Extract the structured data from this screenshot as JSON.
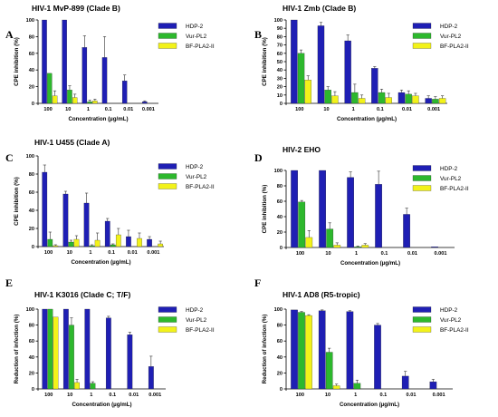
{
  "colors": {
    "HDP-2": "#1f1fb4",
    "Vur-PL2": "#2db82d",
    "BF-PLA2-II": "#f2f21a"
  },
  "chart_data": [
    {
      "panel": "A",
      "type": "bar",
      "title": "HIV-1 MvP-899 (Clade B)",
      "ylabel": "CPE inhibition (%)",
      "xlabel": "Concentration (µg/mL)",
      "ylim": [
        0,
        100
      ],
      "yticks": [
        0,
        20,
        40,
        60,
        80,
        100
      ],
      "categories": [
        "100",
        "10",
        "1",
        "0.1",
        "0.01",
        "0.001"
      ],
      "series": [
        {
          "name": "HDP-2",
          "values": [
            100,
            100,
            67,
            55,
            27,
            2
          ],
          "errors": [
            0,
            0,
            14,
            25,
            7,
            1
          ]
        },
        {
          "name": "Vur-PL2",
          "values": [
            36,
            16,
            2,
            null,
            null,
            null
          ],
          "errors": [
            0,
            5,
            2,
            null,
            null,
            null
          ]
        },
        {
          "name": "BF-PLA2-II",
          "values": [
            9,
            7,
            3,
            null,
            null,
            null
          ],
          "errors": [
            6,
            4,
            2,
            null,
            null,
            null
          ]
        }
      ],
      "legend": [
        "HDP-2",
        "Vur-PL2",
        "BF-PLA2-II"
      ]
    },
    {
      "panel": "B",
      "type": "bar",
      "title": "HIV-1 Zmb (Clade B)",
      "ylabel": "CPE inhibition (%)",
      "xlabel": "Concentration (µg/mL)",
      "ylim": [
        0,
        100
      ],
      "yticks": [
        0,
        10,
        20,
        30,
        40,
        50,
        60,
        70,
        80,
        90,
        100
      ],
      "categories": [
        "100",
        "10",
        "1",
        "0.1",
        "0.01",
        "0.001"
      ],
      "series": [
        {
          "name": "HDP-2",
          "values": [
            100,
            93,
            75,
            42,
            13,
            6
          ],
          "errors": [
            0,
            4,
            7,
            2,
            3,
            3
          ]
        },
        {
          "name": "Vur-PL2",
          "values": [
            60,
            16,
            13,
            13,
            11,
            5
          ],
          "errors": [
            4,
            4,
            10,
            4,
            4,
            3
          ]
        },
        {
          "name": "BF-PLA2-II",
          "values": [
            28,
            9,
            6,
            7,
            9,
            6
          ],
          "errors": [
            5,
            5,
            4,
            5,
            3,
            3
          ]
        }
      ],
      "legend": [
        "HDP-2",
        "Vur-PL2",
        "BF-PLA2-II"
      ]
    },
    {
      "panel": "C",
      "type": "bar",
      "title": "HIV-1 U455 (Clade A)",
      "ylabel": "CPE inhibition (%)",
      "xlabel": "Concentration (µg/mL)",
      "ylim": [
        0,
        100
      ],
      "yticks": [
        0,
        20,
        40,
        60,
        80,
        100
      ],
      "categories": [
        "100",
        "10",
        "1",
        "0.1",
        "0.01",
        "0.001"
      ],
      "series": [
        {
          "name": "HDP-2",
          "values": [
            82,
            58,
            48,
            28,
            11,
            8
          ],
          "errors": [
            8,
            3,
            11,
            3,
            7,
            3
          ]
        },
        {
          "name": "Vur-PL2",
          "values": [
            8,
            5,
            1,
            2,
            null,
            null
          ],
          "errors": [
            8,
            2,
            1,
            1,
            null,
            null
          ]
        },
        {
          "name": "BF-PLA2-II",
          "values": [
            1,
            8,
            7,
            13,
            9,
            3
          ],
          "errors": [
            1,
            4,
            8,
            7,
            6,
            3
          ]
        }
      ],
      "legend": [
        "HDP-2",
        "Vur-PL2",
        "BF-PLA2-II"
      ]
    },
    {
      "panel": "D",
      "type": "bar",
      "title": "HIV-2 EHO",
      "ylabel": "CPE inhibition (%)",
      "xlabel": "Concentration (µg/mL)",
      "ylim": [
        0,
        100
      ],
      "yticks": [
        0,
        20,
        40,
        60,
        80,
        100
      ],
      "categories": [
        "100",
        "10",
        "1",
        "0.1",
        "0.01",
        "0.001"
      ],
      "series": [
        {
          "name": "HDP-2",
          "values": [
            100,
            100,
            91,
            82,
            43,
            1
          ],
          "errors": [
            0,
            0,
            7,
            17,
            8,
            0
          ]
        },
        {
          "name": "Vur-PL2",
          "values": [
            59,
            24,
            1,
            null,
            null,
            null
          ],
          "errors": [
            2,
            8,
            1,
            null,
            null,
            null
          ]
        },
        {
          "name": "BF-PLA2-II",
          "values": [
            13,
            3,
            3,
            null,
            null,
            null
          ],
          "errors": [
            9,
            3,
            2,
            null,
            null,
            null
          ]
        }
      ],
      "legend": [
        "HDP-2",
        "Vur-PL2",
        "BF-PLA2-II"
      ]
    },
    {
      "panel": "E",
      "type": "bar",
      "title": "HIV-1 K3016 (Clade C; T/F)",
      "ylabel": "Reduction of infection (%)",
      "xlabel": "Concentration (µg/mL)",
      "ylim": [
        0,
        100
      ],
      "yticks": [
        0,
        20,
        40,
        60,
        80,
        100
      ],
      "categories": [
        "100",
        "10",
        "1",
        "0.1",
        "0.01",
        "0.001"
      ],
      "series": [
        {
          "name": "HDP-2",
          "values": [
            100,
            100,
            100,
            89,
            68,
            28
          ],
          "errors": [
            0,
            0,
            0,
            2,
            3,
            13
          ]
        },
        {
          "name": "Vur-PL2",
          "values": [
            100,
            80,
            7,
            null,
            null,
            null
          ],
          "errors": [
            0,
            9,
            2,
            null,
            null,
            null
          ]
        },
        {
          "name": "BF-PLA2-II",
          "values": [
            90,
            8,
            null,
            null,
            null,
            null
          ],
          "errors": [
            0,
            4,
            null,
            null,
            null,
            null
          ]
        }
      ],
      "legend": [
        "HDP-2",
        "Vur-PL2",
        "BF-PLA2-II"
      ]
    },
    {
      "panel": "F",
      "type": "bar",
      "title": "HIV-1 AD8 (R5-tropic)",
      "ylabel": "Reduction of infection (%)",
      "xlabel": "Concentration (µg/mL)",
      "ylim": [
        0,
        100
      ],
      "yticks": [
        0,
        20,
        40,
        60,
        80,
        100
      ],
      "categories": [
        "100",
        "10",
        "1",
        "0.1",
        "0.01",
        "0.001"
      ],
      "series": [
        {
          "name": "HDP-2",
          "values": [
            99,
            98,
            97,
            80,
            16,
            9
          ],
          "errors": [
            0,
            1,
            1,
            2,
            6,
            3
          ]
        },
        {
          "name": "Vur-PL2",
          "values": [
            96,
            46,
            7,
            null,
            null,
            null
          ],
          "errors": [
            1,
            5,
            4,
            null,
            null,
            null
          ]
        },
        {
          "name": "BF-PLA2-II",
          "values": [
            92,
            4,
            null,
            null,
            null,
            null
          ],
          "errors": [
            1,
            2,
            null,
            null,
            null,
            null
          ]
        }
      ],
      "legend": [
        "HDP-2",
        "Vur-PL2",
        "BF-PLA2-II"
      ]
    }
  ]
}
